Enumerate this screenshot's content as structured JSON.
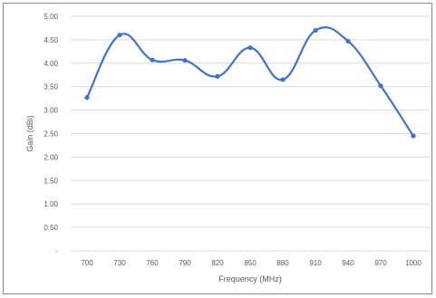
{
  "chart_data": {
    "type": "line",
    "xlabel": "Frequency (MHz)",
    "ylabel": "Gain (dBi)",
    "x": [
      700,
      730,
      760,
      790,
      820,
      850,
      880,
      910,
      940,
      970,
      1000
    ],
    "series": [
      {
        "values": [
          3.27,
          4.6,
          4.07,
          4.06,
          3.72,
          4.33,
          3.65,
          4.7,
          4.47,
          3.52,
          2.45
        ]
      }
    ],
    "ylim": [
      0,
      5
    ],
    "y_ticks": [
      0,
      0.5,
      1,
      1.5,
      2,
      2.5,
      3,
      3.5,
      4,
      4.5,
      5
    ],
    "y_tick_labels": [
      "-",
      "0.50",
      "1.00",
      "1.50",
      "2.00",
      "2.50",
      "3.00",
      "3.50",
      "4.00",
      "4.50",
      "5.00"
    ],
    "x_tick_labels": [
      "700",
      "730",
      "760",
      "790",
      "820",
      "850",
      "880",
      "910",
      "940",
      "970",
      "1000"
    ],
    "grid": "horizontal",
    "legend": "none",
    "smoothed": true,
    "colors": {
      "line": "#4472c4",
      "grid": "#d9d9d9",
      "text": "#595959",
      "frame": "#8c8c8c"
    }
  }
}
